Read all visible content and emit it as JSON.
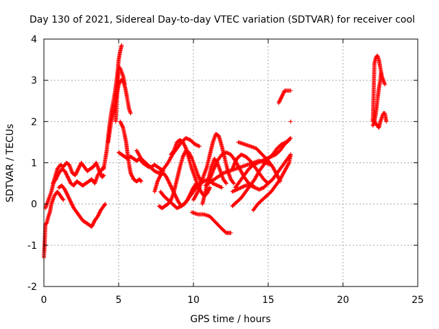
{
  "chart_data": {
    "type": "scatter",
    "title": "Day 130 of 2021, Sidereal Day-to-day VTEC variation (SDTVAR) for receiver cool",
    "xlabel": "GPS time / hours",
    "ylabel": "SDTVAR / TECUs",
    "xlim": [
      0,
      25
    ],
    "ylim": [
      -2,
      4
    ],
    "xticks": [
      "0",
      "5",
      "10",
      "15",
      "20",
      "25"
    ],
    "yticks": [
      "-2",
      "-1",
      "0",
      "1",
      "2",
      "3",
      "4"
    ],
    "grid": true,
    "legend": "none",
    "marker": "plus",
    "color": "#ff0000",
    "segments": [
      [
        [
          0,
          -1.3
        ],
        [
          0.05,
          -0.95
        ],
        [
          0.1,
          -0.5
        ],
        [
          0.2,
          -0.45
        ],
        [
          0.3,
          -0.3
        ],
        [
          0.4,
          -0.2
        ],
        [
          0.5,
          0.0
        ],
        [
          0.7,
          0.2
        ],
        [
          0.9,
          0.3
        ],
        [
          1.1,
          0.2
        ],
        [
          1.3,
          0.1
        ]
      ],
      [
        [
          0.1,
          -0.1
        ],
        [
          0.3,
          0.1
        ],
        [
          0.5,
          0.3
        ],
        [
          0.7,
          0.6
        ],
        [
          0.9,
          0.85
        ],
        [
          1.1,
          0.95
        ],
        [
          1.3,
          0.9
        ],
        [
          1.5,
          1.0
        ],
        [
          1.7,
          0.95
        ],
        [
          1.9,
          0.75
        ],
        [
          2.1,
          0.7
        ],
        [
          2.3,
          0.85
        ],
        [
          2.5,
          1.0
        ],
        [
          2.7,
          0.9
        ],
        [
          2.9,
          0.8
        ],
        [
          3.1,
          0.85
        ],
        [
          3.3,
          0.9
        ],
        [
          3.5,
          1.0
        ],
        [
          3.7,
          0.8
        ],
        [
          3.9,
          0.65
        ],
        [
          4.0,
          0.7
        ]
      ],
      [
        [
          0.6,
          0.5
        ],
        [
          0.8,
          0.6
        ],
        [
          1.0,
          0.75
        ],
        [
          1.2,
          0.85
        ],
        [
          1.4,
          0.8
        ],
        [
          1.6,
          0.65
        ],
        [
          1.8,
          0.5
        ],
        [
          2.0,
          0.45
        ],
        [
          2.2,
          0.55
        ],
        [
          2.4,
          0.5
        ],
        [
          2.6,
          0.45
        ],
        [
          2.8,
          0.5
        ],
        [
          3.0,
          0.55
        ],
        [
          3.2,
          0.6
        ],
        [
          3.4,
          0.5
        ],
        [
          3.6,
          0.7
        ],
        [
          3.8,
          0.8
        ],
        [
          4.0,
          0.9
        ]
      ],
      [
        [
          1.0,
          0.4
        ],
        [
          1.2,
          0.45
        ],
        [
          1.4,
          0.35
        ],
        [
          1.6,
          0.2
        ],
        [
          1.8,
          0.05
        ],
        [
          2.0,
          -0.1
        ],
        [
          2.2,
          -0.2
        ],
        [
          2.4,
          -0.3
        ],
        [
          2.6,
          -0.4
        ],
        [
          2.8,
          -0.45
        ],
        [
          3.0,
          -0.5
        ],
        [
          3.2,
          -0.55
        ],
        [
          3.4,
          -0.4
        ],
        [
          3.6,
          -0.3
        ],
        [
          3.8,
          -0.15
        ],
        [
          4.0,
          -0.05
        ],
        [
          4.1,
          0.0
        ]
      ],
      [
        [
          4.0,
          0.85
        ],
        [
          4.2,
          1.3
        ],
        [
          4.35,
          1.8
        ],
        [
          4.5,
          2.2
        ],
        [
          4.6,
          2.4
        ],
        [
          4.75,
          2.7
        ],
        [
          4.9,
          3.1
        ],
        [
          5.0,
          3.5
        ],
        [
          5.1,
          3.7
        ],
        [
          5.2,
          3.85
        ]
      ],
      [
        [
          4.3,
          1.5
        ],
        [
          4.5,
          2.0
        ],
        [
          4.7,
          2.3
        ],
        [
          4.85,
          2.6
        ],
        [
          5.0,
          2.9
        ],
        [
          5.15,
          3.0
        ],
        [
          5.3,
          3.0
        ],
        [
          5.45,
          2.8
        ],
        [
          5.6,
          2.5
        ],
        [
          5.7,
          2.3
        ],
        [
          5.8,
          2.2
        ]
      ],
      [
        [
          4.8,
          2.0
        ],
        [
          4.9,
          2.7
        ],
        [
          5.0,
          3.3
        ],
        [
          5.1,
          3.3
        ],
        [
          5.2,
          3.2
        ],
        [
          5.3,
          3.1
        ],
        [
          5.4,
          2.9
        ]
      ],
      [
        [
          5.0,
          1.25
        ],
        [
          5.2,
          1.2
        ],
        [
          5.4,
          1.15
        ],
        [
          5.6,
          1.1
        ],
        [
          5.8,
          1.15
        ],
        [
          6.0,
          1.1
        ],
        [
          6.2,
          1.05
        ],
        [
          6.4,
          1.1
        ],
        [
          6.6,
          1.0
        ],
        [
          6.8,
          0.95
        ],
        [
          7.0,
          0.9
        ],
        [
          7.2,
          0.9
        ],
        [
          7.4,
          0.95
        ],
        [
          7.6,
          0.9
        ],
        [
          7.8,
          0.85
        ],
        [
          8.0,
          0.8
        ]
      ],
      [
        [
          5.1,
          2.0
        ],
        [
          5.3,
          1.85
        ],
        [
          5.5,
          1.5
        ],
        [
          5.6,
          1.2
        ],
        [
          5.7,
          0.95
        ],
        [
          5.8,
          0.75
        ],
        [
          6.0,
          0.6
        ],
        [
          6.2,
          0.55
        ],
        [
          6.4,
          0.6
        ],
        [
          6.5,
          0.55
        ]
      ],
      [
        [
          6.2,
          1.3
        ],
        [
          6.5,
          1.1
        ],
        [
          6.8,
          1.0
        ],
        [
          7.1,
          0.9
        ],
        [
          7.4,
          0.8
        ],
        [
          7.7,
          0.75
        ],
        [
          8.0,
          0.85
        ],
        [
          8.3,
          1.0
        ],
        [
          8.6,
          1.2
        ],
        [
          8.9,
          1.35
        ],
        [
          9.2,
          1.5
        ],
        [
          9.5,
          1.6
        ],
        [
          9.8,
          1.55
        ],
        [
          10.1,
          1.45
        ],
        [
          10.4,
          1.4
        ]
      ],
      [
        [
          7.4,
          0.3
        ],
        [
          7.6,
          0.55
        ],
        [
          7.8,
          0.7
        ],
        [
          8.0,
          0.75
        ],
        [
          8.2,
          0.65
        ],
        [
          8.4,
          0.5
        ],
        [
          8.6,
          0.35
        ],
        [
          8.8,
          0.2
        ],
        [
          9.0,
          0.05
        ],
        [
          9.2,
          -0.05
        ],
        [
          9.4,
          0.0
        ],
        [
          9.6,
          0.1
        ],
        [
          9.8,
          0.25
        ],
        [
          10.0,
          0.4
        ],
        [
          10.2,
          0.5
        ]
      ],
      [
        [
          7.8,
          0.3
        ],
        [
          8.0,
          0.2
        ],
        [
          8.3,
          0.1
        ],
        [
          8.6,
          0.0
        ],
        [
          8.9,
          -0.1
        ],
        [
          9.2,
          -0.05
        ],
        [
          9.5,
          0.05
        ],
        [
          9.8,
          0.2
        ],
        [
          10.1,
          0.35
        ],
        [
          10.4,
          0.5
        ],
        [
          10.7,
          0.55
        ],
        [
          11.0,
          0.6
        ],
        [
          11.3,
          0.5
        ],
        [
          11.6,
          0.45
        ],
        [
          11.9,
          0.4
        ]
      ],
      [
        [
          7.7,
          -0.05
        ],
        [
          7.9,
          -0.1
        ],
        [
          8.1,
          -0.05
        ],
        [
          8.3,
          0.0
        ],
        [
          8.5,
          0.1
        ],
        [
          8.7,
          0.3
        ],
        [
          8.9,
          0.6
        ],
        [
          9.1,
          0.9
        ],
        [
          9.3,
          1.15
        ],
        [
          9.5,
          1.3
        ],
        [
          9.7,
          1.25
        ],
        [
          9.9,
          1.1
        ],
        [
          10.1,
          0.9
        ],
        [
          10.3,
          0.7
        ],
        [
          10.5,
          0.55
        ]
      ],
      [
        [
          8.5,
          1.2
        ],
        [
          8.7,
          1.3
        ],
        [
          8.9,
          1.5
        ],
        [
          9.1,
          1.55
        ],
        [
          9.3,
          1.5
        ],
        [
          9.5,
          1.35
        ],
        [
          9.7,
          1.1
        ],
        [
          9.9,
          0.85
        ],
        [
          10.1,
          0.65
        ],
        [
          10.3,
          0.45
        ],
        [
          10.5,
          0.3
        ],
        [
          10.7,
          0.2
        ],
        [
          10.9,
          0.25
        ],
        [
          11.1,
          0.4
        ]
      ],
      [
        [
          10.0,
          0.1
        ],
        [
          10.3,
          0.3
        ],
        [
          10.6,
          0.6
        ],
        [
          10.9,
          0.9
        ],
        [
          11.1,
          1.2
        ],
        [
          11.3,
          1.5
        ],
        [
          11.5,
          1.7
        ],
        [
          11.7,
          1.65
        ],
        [
          11.9,
          1.4
        ],
        [
          12.1,
          1.1
        ],
        [
          12.3,
          0.8
        ],
        [
          12.5,
          0.6
        ],
        [
          12.7,
          0.5
        ]
      ],
      [
        [
          10.6,
          0.0
        ],
        [
          10.8,
          0.3
        ],
        [
          11.0,
          0.6
        ],
        [
          11.2,
          0.9
        ],
        [
          11.4,
          1.1
        ],
        [
          11.6,
          1.0
        ],
        [
          11.8,
          0.8
        ],
        [
          12.0,
          0.6
        ],
        [
          12.2,
          0.5
        ]
      ],
      [
        [
          11.0,
          0.5
        ],
        [
          11.3,
          0.8
        ],
        [
          11.6,
          1.05
        ],
        [
          11.9,
          1.2
        ],
        [
          12.2,
          1.25
        ],
        [
          12.5,
          1.2
        ],
        [
          12.8,
          1.05
        ],
        [
          13.1,
          0.85
        ],
        [
          13.4,
          0.65
        ],
        [
          13.7,
          0.5
        ],
        [
          14.0,
          0.45
        ]
      ],
      [
        [
          10.8,
          0.45
        ],
        [
          11.2,
          0.55
        ],
        [
          11.6,
          0.65
        ],
        [
          12.0,
          0.75
        ],
        [
          12.4,
          0.8
        ],
        [
          12.8,
          0.85
        ],
        [
          13.2,
          0.9
        ],
        [
          13.6,
          0.95
        ],
        [
          14.0,
          1.0
        ],
        [
          14.4,
          1.05
        ],
        [
          14.8,
          1.0
        ],
        [
          15.2,
          0.95
        ]
      ],
      [
        [
          13.0,
          1.5
        ],
        [
          13.4,
          1.45
        ],
        [
          13.8,
          1.4
        ],
        [
          14.2,
          1.35
        ],
        [
          14.6,
          1.2
        ],
        [
          15.0,
          1.05
        ],
        [
          15.3,
          0.9
        ],
        [
          15.6,
          0.7
        ],
        [
          15.8,
          0.55
        ]
      ],
      [
        [
          12.6,
          0.85
        ],
        [
          12.9,
          1.1
        ],
        [
          13.2,
          1.2
        ],
        [
          13.5,
          1.15
        ],
        [
          13.8,
          1.05
        ],
        [
          14.1,
          0.9
        ],
        [
          14.4,
          0.75
        ],
        [
          14.7,
          0.6
        ],
        [
          15.0,
          0.5
        ]
      ],
      [
        [
          12.8,
          0.4
        ],
        [
          13.1,
          0.55
        ],
        [
          13.4,
          0.7
        ],
        [
          13.7,
          0.85
        ],
        [
          14.0,
          0.95
        ],
        [
          14.3,
          1.0
        ],
        [
          14.6,
          1.05
        ],
        [
          14.9,
          1.1
        ],
        [
          15.2,
          1.15
        ],
        [
          15.5,
          1.2
        ],
        [
          15.8,
          1.3
        ],
        [
          16.1,
          1.45
        ],
        [
          16.4,
          1.55
        ]
      ],
      [
        [
          12.6,
          0.3
        ],
        [
          12.9,
          0.35
        ],
        [
          13.2,
          0.4
        ],
        [
          13.5,
          0.45
        ],
        [
          13.8,
          0.45
        ],
        [
          14.1,
          0.4
        ],
        [
          14.4,
          0.35
        ],
        [
          14.7,
          0.4
        ],
        [
          15.0,
          0.5
        ],
        [
          15.3,
          0.6
        ],
        [
          15.6,
          0.75
        ],
        [
          15.9,
          0.9
        ],
        [
          16.2,
          1.05
        ],
        [
          16.5,
          1.2
        ]
      ],
      [
        [
          12.6,
          -0.05
        ],
        [
          12.9,
          0.05
        ],
        [
          13.2,
          0.15
        ],
        [
          13.5,
          0.3
        ],
        [
          13.8,
          0.45
        ],
        [
          14.1,
          0.6
        ],
        [
          14.4,
          0.8
        ],
        [
          14.7,
          0.95
        ],
        [
          15.0,
          1.1
        ],
        [
          15.3,
          1.2
        ],
        [
          15.6,
          1.35
        ],
        [
          15.9,
          1.45
        ],
        [
          16.2,
          1.5
        ],
        [
          16.5,
          1.6
        ]
      ],
      [
        [
          14.0,
          -0.15
        ],
        [
          14.3,
          0.0
        ],
        [
          14.6,
          0.1
        ],
        [
          14.9,
          0.2
        ],
        [
          15.2,
          0.3
        ],
        [
          15.5,
          0.45
        ],
        [
          15.8,
          0.6
        ],
        [
          16.1,
          0.8
        ],
        [
          16.4,
          1.0
        ],
        [
          16.5,
          1.2
        ]
      ],
      [
        [
          9.9,
          -0.2
        ],
        [
          10.3,
          -0.25
        ],
        [
          10.7,
          -0.25
        ],
        [
          11.1,
          -0.3
        ],
        [
          11.5,
          -0.45
        ],
        [
          11.9,
          -0.6
        ],
        [
          12.2,
          -0.7
        ],
        [
          12.5,
          -0.7
        ]
      ],
      [
        [
          15.7,
          2.45
        ],
        [
          15.9,
          2.6
        ],
        [
          16.1,
          2.75
        ],
        [
          16.3,
          2.75
        ],
        [
          16.5,
          2.75
        ]
      ],
      [
        [
          16.5,
          2.0
        ]
      ],
      [
        [
          22.0,
          2.0
        ],
        [
          22.1,
          3.4
        ],
        [
          22.2,
          3.55
        ],
        [
          22.3,
          3.6
        ],
        [
          22.4,
          3.5
        ],
        [
          22.5,
          3.3
        ],
        [
          22.6,
          3.1
        ],
        [
          22.7,
          3.0
        ],
        [
          22.8,
          2.9
        ]
      ],
      [
        [
          22.0,
          1.9
        ],
        [
          22.1,
          2.0
        ],
        [
          22.2,
          2.2
        ],
        [
          22.3,
          2.5
        ],
        [
          22.4,
          2.8
        ],
        [
          22.5,
          3.0
        ],
        [
          22.55,
          3.2
        ]
      ],
      [
        [
          22.0,
          2.05
        ],
        [
          22.2,
          1.95
        ],
        [
          22.4,
          1.85
        ],
        [
          22.5,
          2.0
        ],
        [
          22.6,
          2.1
        ],
        [
          22.7,
          2.2
        ],
        [
          22.8,
          2.2
        ],
        [
          22.9,
          2.0
        ]
      ]
    ]
  }
}
